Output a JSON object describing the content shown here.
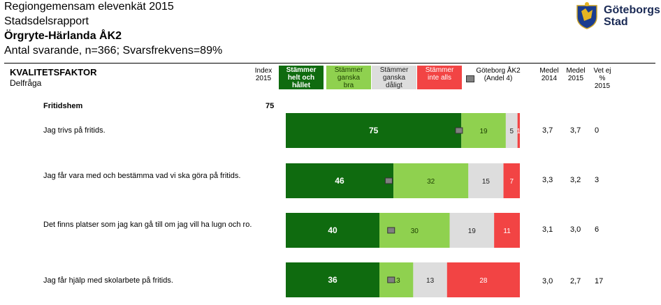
{
  "header": {
    "line1": "Regiongemensam elevenkät 2015",
    "line2": "Stadsdelsrapport",
    "line3": "Örgryte-Härlanda ÅK2",
    "line4": "Antal svarande, n=366; Svarsfrekvens=89%"
  },
  "logo": {
    "text": "Göteborgs\nStad",
    "icon": "city-crest-icon"
  },
  "table_header": {
    "factor": "KVALITETSFAKTOR",
    "subfactor": "Delfråga",
    "index": "Index\n2015",
    "legend": [
      "Stämmer\nhelt och\nhållet",
      "Stämmer\nganska\nbra",
      "Stämmer\nganska\ndåligt",
      "Stämmer\ninte alls"
    ],
    "gbg": "Göteborg ÅK2\n(Andel 4)",
    "medel2014": "Medel\n2014",
    "medel2015": "Medel\n2015",
    "vet_ej": "Vet ej\n%\n2015"
  },
  "chart_data": {
    "type": "bar",
    "stacked": true,
    "orientation": "horizontal",
    "section": "Fritidshem",
    "section_index": "75",
    "colors": [
      "#0f6b0f",
      "#8fd14f",
      "#dddddd",
      "#f24444"
    ],
    "rows": [
      {
        "question": "Jag trivs på fritids.",
        "values": [
          75,
          19,
          5,
          1
        ],
        "gbg_marker": 74,
        "medel2014": "3,7",
        "medel2015": "3,7",
        "vet_ej": "0"
      },
      {
        "question": "Jag får vara med och bestämma vad vi ska göra på fritids.",
        "values": [
          46,
          32,
          15,
          7
        ],
        "gbg_marker": 44,
        "medel2014": "3,3",
        "medel2015": "3,2",
        "vet_ej": "3"
      },
      {
        "question": "Det finns platser som jag kan gå till om jag vill ha lugn och ro.",
        "values": [
          40,
          30,
          19,
          11
        ],
        "gbg_marker": 45,
        "medel2014": "3,1",
        "medel2015": "3,0",
        "vet_ej": "6"
      },
      {
        "question": "Jag får hjälp med skolarbete på fritids.",
        "values": [
          36,
          13,
          13,
          28
        ],
        "gbg_marker": 45,
        "medel2014": "3,0",
        "medel2015": "2,7",
        "vet_ej": "17"
      }
    ]
  }
}
